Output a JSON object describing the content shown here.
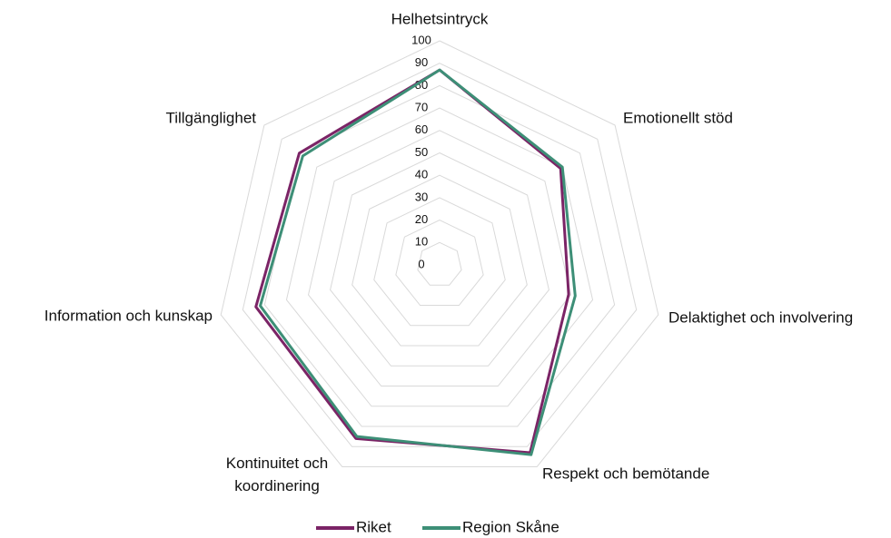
{
  "chart_data": {
    "type": "radar",
    "categories": [
      "Helhetsintryck",
      "Emotionellt stöd",
      "Delaktighet och involvering",
      "Respekt och bemötande",
      "Kontinuitet och koordinering",
      "Information och kunskap",
      "Tillgänglighet"
    ],
    "series": [
      {
        "name": "Riket",
        "color": "#7b2466",
        "values": [
          87,
          69,
          59,
          93,
          86,
          84,
          80
        ]
      },
      {
        "name": "Region Skåne",
        "color": "#3d8f77",
        "values": [
          87,
          70,
          62,
          94,
          85,
          82,
          78
        ]
      }
    ],
    "ylim": [
      0,
      100
    ],
    "yticks": [
      0,
      10,
      20,
      30,
      40,
      50,
      60,
      70,
      80,
      90,
      100
    ],
    "grid": true,
    "legend": "bottom"
  }
}
